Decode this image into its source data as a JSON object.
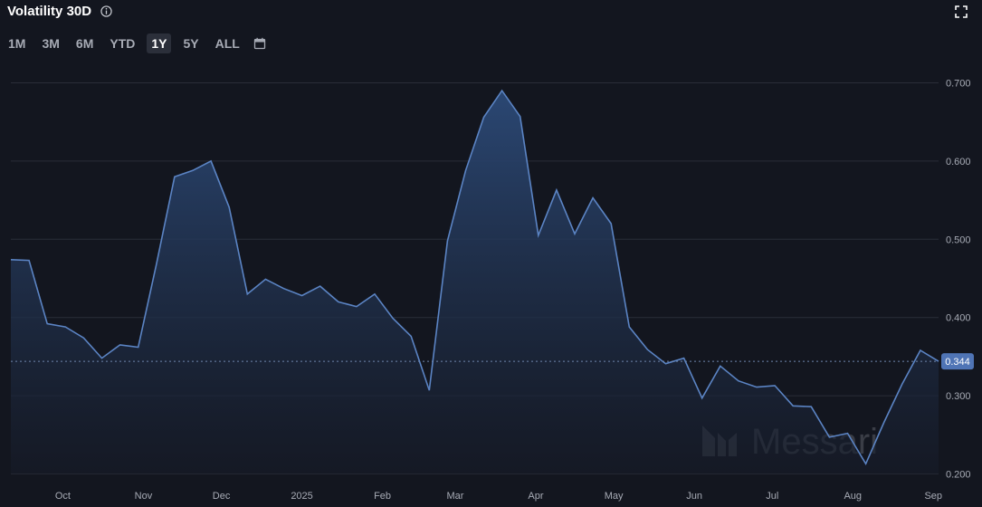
{
  "header": {
    "title": "Volatility 30D",
    "info_icon": "info-icon",
    "expand_icon": "expand-icon"
  },
  "range_selector": {
    "options": [
      "1M",
      "3M",
      "6M",
      "YTD",
      "1Y",
      "5Y",
      "ALL"
    ],
    "selected": "1Y",
    "calendar_icon": "calendar-icon"
  },
  "watermark": "Messari",
  "colors": {
    "background": "#13161f",
    "line": "#5b84c4",
    "fill_top": "#2c4a78",
    "grid": "#2a2e38",
    "badge": "#4f74b5"
  },
  "chart_data": {
    "type": "area",
    "title": "Volatility 30D",
    "xlabel": "",
    "ylabel": "",
    "ylim": [
      0.2,
      0.7
    ],
    "y_ticks": [
      "0.700",
      "0.600",
      "0.500",
      "0.400",
      "0.300",
      "0.200"
    ],
    "x_ticks": [
      "Oct",
      "Nov",
      "Dec",
      "2025",
      "Feb",
      "Mar",
      "Apr",
      "May",
      "Jun",
      "Jul",
      "Aug",
      "Sep"
    ],
    "y_axis_side": "right",
    "grid": "horizontal",
    "current_value": "0.344",
    "series": [
      {
        "x": [
          "2024-09-11",
          "2024-09-18",
          "2024-09-25",
          "2024-10-02",
          "2024-10-09",
          "2024-10-16",
          "2024-10-23",
          "2024-10-30",
          "2024-11-06",
          "2024-11-13",
          "2024-11-20",
          "2024-11-27",
          "2024-12-04",
          "2024-12-11",
          "2024-12-18",
          "2024-12-25",
          "2025-01-01",
          "2025-01-08",
          "2025-01-15",
          "2025-01-22",
          "2025-01-29",
          "2025-02-05",
          "2025-02-12",
          "2025-02-19",
          "2025-02-26",
          "2025-03-05",
          "2025-03-12",
          "2025-03-19",
          "2025-03-26",
          "2025-04-02",
          "2025-04-09",
          "2025-04-16",
          "2025-04-23",
          "2025-04-30",
          "2025-05-07",
          "2025-05-14",
          "2025-05-21",
          "2025-05-28",
          "2025-06-04",
          "2025-06-11",
          "2025-06-18",
          "2025-06-25",
          "2025-07-02",
          "2025-07-09",
          "2025-07-16",
          "2025-07-23",
          "2025-07-30",
          "2025-08-06",
          "2025-08-13",
          "2025-08-20",
          "2025-08-27",
          "2025-09-03"
        ],
        "values": [
          0.474,
          0.473,
          0.392,
          0.388,
          0.374,
          0.348,
          0.365,
          0.362,
          0.468,
          0.58,
          0.588,
          0.6,
          0.541,
          0.43,
          0.449,
          0.437,
          0.428,
          0.44,
          0.42,
          0.414,
          0.43,
          0.399,
          0.376,
          0.307,
          0.498,
          0.588,
          0.656,
          0.69,
          0.657,
          0.505,
          0.563,
          0.507,
          0.553,
          0.52,
          0.388,
          0.359,
          0.341,
          0.348,
          0.297,
          0.338,
          0.319,
          0.311,
          0.313,
          0.287,
          0.286,
          0.247,
          0.252,
          0.213,
          0.266,
          0.315,
          0.358,
          0.344
        ]
      }
    ]
  }
}
